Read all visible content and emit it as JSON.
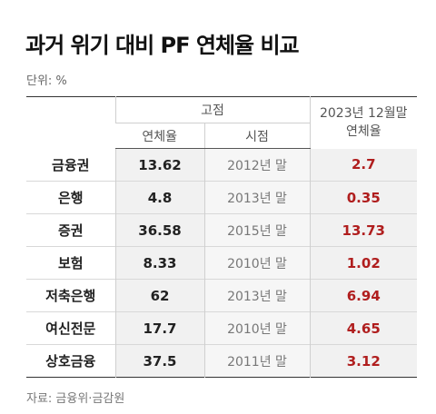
{
  "title": "과거 위기 대비 PF 연체율 비교",
  "unit": "단위: %",
  "source": "자료: 금융위·금감원",
  "header": {
    "group_label": "고점",
    "rate_label": "연체율",
    "time_label": "시점",
    "now_label_line1": "2023년 12월말",
    "now_label_line2": "연체율"
  },
  "accent_color": "#b01e1e",
  "rows": [
    {
      "sector": "금융권",
      "peak_rate": "13.62",
      "peak_time": "2012년 말",
      "rate_2023": "2.7"
    },
    {
      "sector": "은행",
      "peak_rate": "4.8",
      "peak_time": "2013년 말",
      "rate_2023": "0.35"
    },
    {
      "sector": "증권",
      "peak_rate": "36.58",
      "peak_time": "2015년 말",
      "rate_2023": "13.73"
    },
    {
      "sector": "보험",
      "peak_rate": "8.33",
      "peak_time": "2010년 말",
      "rate_2023": "1.02"
    },
    {
      "sector": "저축은행",
      "peak_rate": "62",
      "peak_time": "2013년 말",
      "rate_2023": "6.94"
    },
    {
      "sector": "여신전문",
      "peak_rate": "17.7",
      "peak_time": "2010년 말",
      "rate_2023": "4.65"
    },
    {
      "sector": "상호금융",
      "peak_rate": "37.5",
      "peak_time": "2011년 말",
      "rate_2023": "3.12"
    }
  ]
}
